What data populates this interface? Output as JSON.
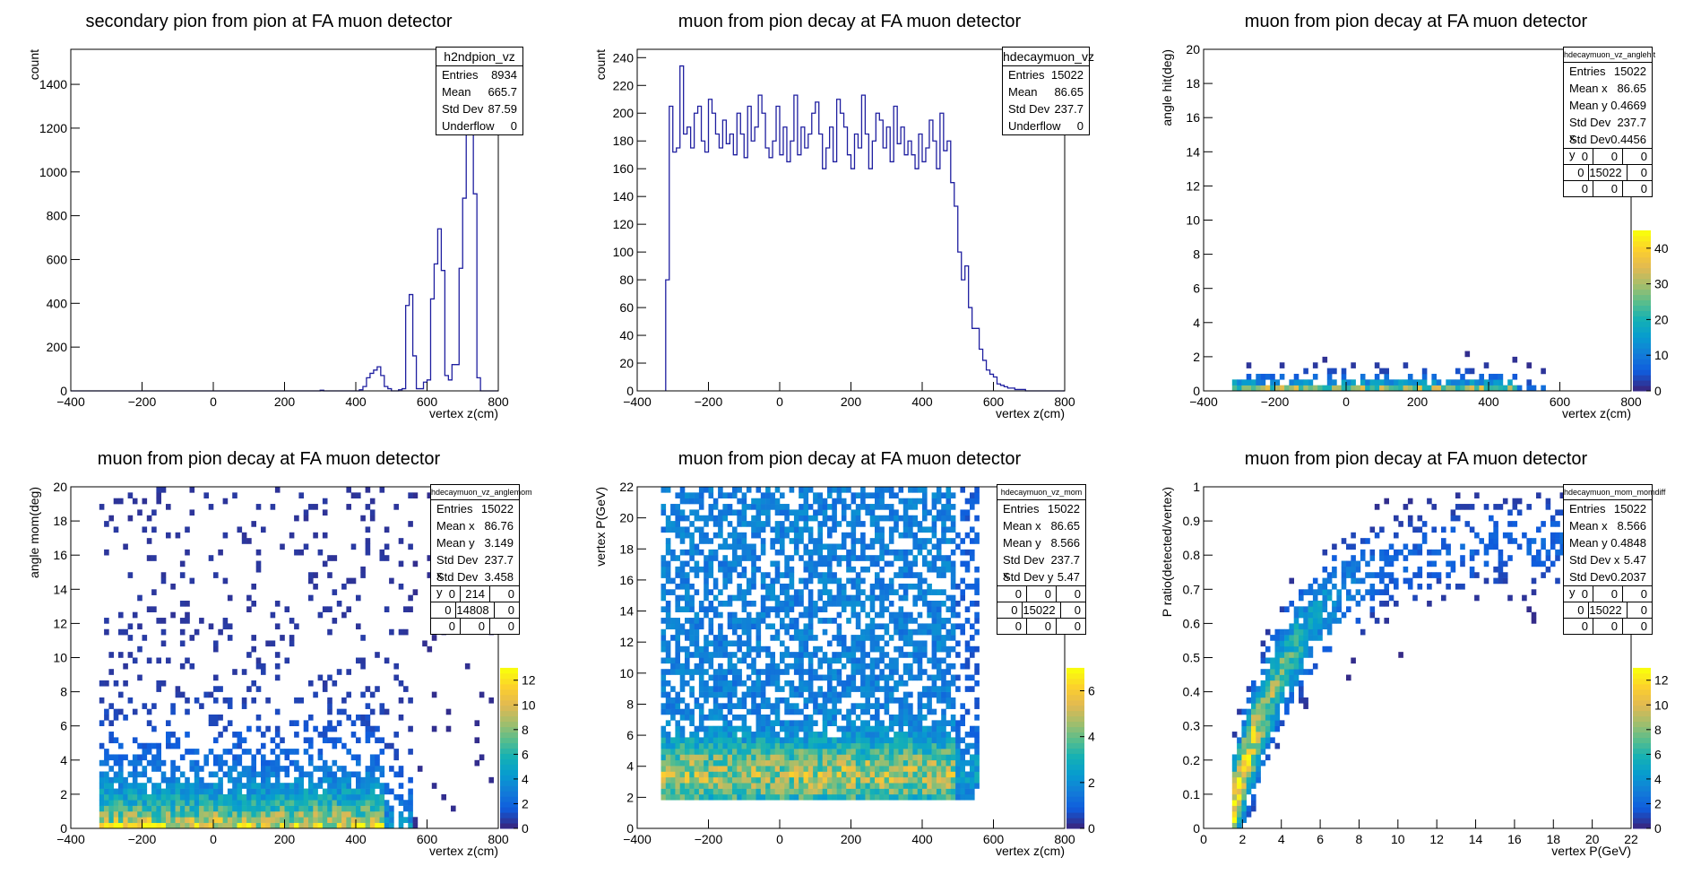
{
  "chart_data": [
    {
      "id": "p1",
      "type": "bar",
      "title": "secondary pion from pion at FA muon detector",
      "xlabel": "vertex z(cm)",
      "ylabel": "count",
      "xlim": [
        -400,
        800
      ],
      "ylim": [
        0,
        1560
      ],
      "xticks": [
        -400,
        -200,
        0,
        200,
        400,
        600,
        800
      ],
      "yticks": [
        0,
        200,
        400,
        600,
        800,
        1000,
        1200,
        1400
      ],
      "bin_start": -400,
      "bin_width": 10,
      "values": [
        0,
        0,
        0,
        0,
        0,
        0,
        0,
        0,
        0,
        0,
        0,
        0,
        0,
        0,
        0,
        0,
        0,
        0,
        0,
        0,
        0,
        0,
        0,
        0,
        0,
        0,
        0,
        0,
        0,
        0,
        0,
        0,
        0,
        0,
        0,
        0,
        0,
        0,
        0,
        0,
        0,
        0,
        0,
        0,
        0,
        0,
        0,
        0,
        0,
        0,
        0,
        0,
        0,
        0,
        0,
        0,
        0,
        0,
        0,
        0,
        0,
        0,
        0,
        0,
        0,
        0,
        0,
        0,
        0,
        0,
        3,
        0,
        0,
        0,
        0,
        0,
        0,
        0,
        0,
        0,
        0,
        5,
        20,
        60,
        80,
        95,
        110,
        70,
        20,
        10,
        0,
        0,
        5,
        10,
        390,
        440,
        160,
        10,
        10,
        40,
        50,
        420,
        580,
        740,
        550,
        70,
        50,
        120,
        120,
        560,
        880,
        1560,
        1560,
        900,
        60,
        0,
        0,
        0,
        0,
        0
      ],
      "stats": {
        "name": "h2ndpion_vz",
        "rows": [
          [
            "Entries",
            "8934"
          ],
          [
            "Mean",
            "665.7"
          ],
          [
            "Std Dev",
            "87.59"
          ],
          [
            "Underflow",
            "0"
          ]
        ]
      }
    },
    {
      "id": "p2",
      "type": "bar",
      "title": "muon from pion decay at FA muon detector",
      "xlabel": "vertex z(cm)",
      "ylabel": "count",
      "xlim": [
        -400,
        800
      ],
      "ylim": [
        0,
        246
      ],
      "xticks": [
        -400,
        -200,
        0,
        200,
        400,
        600,
        800
      ],
      "yticks": [
        0,
        20,
        40,
        60,
        80,
        100,
        120,
        140,
        160,
        180,
        200,
        220,
        240
      ],
      "bin_start": -320,
      "bin_width": 10,
      "values": [
        80,
        205,
        172,
        175,
        234,
        185,
        190,
        175,
        200,
        205,
        180,
        172,
        210,
        200,
        185,
        175,
        195,
        178,
        185,
        170,
        200,
        185,
        168,
        205,
        180,
        190,
        213,
        200,
        175,
        168,
        180,
        205,
        170,
        190,
        165,
        180,
        213,
        170,
        190,
        175,
        185,
        200,
        208,
        185,
        160,
        175,
        190,
        165,
        210,
        200,
        190,
        170,
        160,
        185,
        175,
        213,
        185,
        160,
        180,
        200,
        195,
        175,
        190,
        165,
        205,
        178,
        190,
        170,
        180,
        170,
        160,
        185,
        165,
        175,
        195,
        180,
        160,
        200,
        173,
        180,
        150,
        133,
        100,
        80,
        90,
        60,
        45,
        45,
        30,
        22,
        15,
        12,
        10,
        5,
        4,
        3,
        2,
        2,
        1,
        1,
        1,
        0,
        0,
        0,
        0,
        0,
        0,
        0,
        0,
        0,
        0,
        0
      ],
      "stats": {
        "name": "hdecaymuon_vz",
        "rows": [
          [
            "Entries",
            "15022"
          ],
          [
            "Mean",
            "86.65"
          ],
          [
            "Std Dev",
            "237.7"
          ],
          [
            "Underflow",
            "0"
          ]
        ]
      }
    },
    {
      "id": "p3",
      "type": "heatmap",
      "title": "muon from pion decay at FA muon detector",
      "xlabel": "vertex z(cm)",
      "ylabel": "angle hit(deg)",
      "xlim": [
        -400,
        800
      ],
      "ylim": [
        0,
        20
      ],
      "xticks": [
        -400,
        -200,
        0,
        200,
        400,
        600,
        800
      ],
      "yticks": [
        0,
        2,
        4,
        6,
        8,
        10,
        12,
        14,
        16,
        18,
        20
      ],
      "zmax": 45,
      "zticks": [
        0,
        10,
        20,
        30,
        40
      ],
      "stats": {
        "name": "hdecaymuon_vz_anglehit",
        "rows": [
          [
            "Entries",
            "15022"
          ],
          [
            "Mean x",
            "86.65"
          ],
          [
            "Mean y",
            "0.4669"
          ],
          [
            "Std Dev x",
            "237.7"
          ],
          [
            "Std Dev y",
            "0.4456"
          ]
        ],
        "grid": [
          [
            "0",
            "0",
            "0"
          ],
          [
            "0",
            "15022",
            "0"
          ],
          [
            "0",
            "0",
            "0"
          ]
        ]
      }
    },
    {
      "id": "p4",
      "type": "heatmap",
      "title": "muon from pion decay at FA muon detector",
      "xlabel": "vertex z(cm)",
      "ylabel": "angle mom(deg)",
      "xlim": [
        -400,
        800
      ],
      "ylim": [
        0,
        20
      ],
      "xticks": [
        -400,
        -200,
        0,
        200,
        400,
        600,
        800
      ],
      "yticks": [
        0,
        2,
        4,
        6,
        8,
        10,
        12,
        14,
        16,
        18,
        20
      ],
      "zmax": 13,
      "zticks": [
        0,
        2,
        4,
        6,
        8,
        10,
        12
      ],
      "stats": {
        "name": "hdecaymuon_vz_anglemom",
        "rows": [
          [
            "Entries",
            "15022"
          ],
          [
            "Mean x",
            "86.76"
          ],
          [
            "Mean y",
            "3.149"
          ],
          [
            "Std Dev x",
            "237.7"
          ],
          [
            "Std Dev y",
            "3.458"
          ]
        ],
        "grid": [
          [
            "0",
            "214",
            "0"
          ],
          [
            "0",
            "14808",
            "0"
          ],
          [
            "0",
            "0",
            "0"
          ]
        ]
      }
    },
    {
      "id": "p5",
      "type": "heatmap",
      "title": "muon from pion decay at FA muon detector",
      "xlabel": "vertex z(cm)",
      "ylabel": "vertex P(GeV)",
      "xlim": [
        -400,
        800
      ],
      "ylim": [
        0,
        22
      ],
      "xticks": [
        -400,
        -200,
        0,
        200,
        400,
        600,
        800
      ],
      "yticks": [
        0,
        2,
        4,
        6,
        8,
        10,
        12,
        14,
        16,
        18,
        20,
        22
      ],
      "zmax": 7,
      "zticks": [
        0,
        2,
        4,
        6
      ],
      "stats": {
        "name": "hdecaymuon_vz_mom",
        "rows": [
          [
            "Entries",
            "15022"
          ],
          [
            "Mean x",
            "86.65"
          ],
          [
            "Mean y",
            "8.566"
          ],
          [
            "Std Dev x",
            "237.7"
          ],
          [
            "Std Dev y",
            "5.47"
          ]
        ],
        "grid": [
          [
            "0",
            "0",
            "0"
          ],
          [
            "0",
            "15022",
            "0"
          ],
          [
            "0",
            "0",
            "0"
          ]
        ]
      }
    },
    {
      "id": "p6",
      "type": "heatmap",
      "title": "muon from pion decay at FA muon detector",
      "xlabel": "vertex P(GeV)",
      "ylabel": "P ratio(detected/vertex)",
      "xlim": [
        0,
        22
      ],
      "ylim": [
        0,
        1
      ],
      "xticks": [
        0,
        2,
        4,
        6,
        8,
        10,
        12,
        14,
        16,
        18,
        20,
        22
      ],
      "yticks": [
        0,
        0.1,
        0.2,
        0.3,
        0.4,
        0.5,
        0.6,
        0.7,
        0.8,
        0.9,
        1
      ],
      "zmax": 13,
      "zticks": [
        0,
        2,
        4,
        6,
        8,
        10,
        12
      ],
      "stats": {
        "name": "hdecaymuon_mom_momdiff",
        "rows": [
          [
            "Entries",
            "15022"
          ],
          [
            "Mean x",
            "8.566"
          ],
          [
            "Mean y",
            "0.4848"
          ],
          [
            "Std Dev x",
            "5.47"
          ],
          [
            "Std Dev y",
            "0.2037"
          ]
        ],
        "grid": [
          [
            "0",
            "0",
            "0"
          ],
          [
            "0",
            "15022",
            "0"
          ],
          [
            "0",
            "0",
            "0"
          ]
        ]
      }
    }
  ],
  "colors": {
    "hist_line": "#1f1fa0",
    "frame": "#000000"
  }
}
